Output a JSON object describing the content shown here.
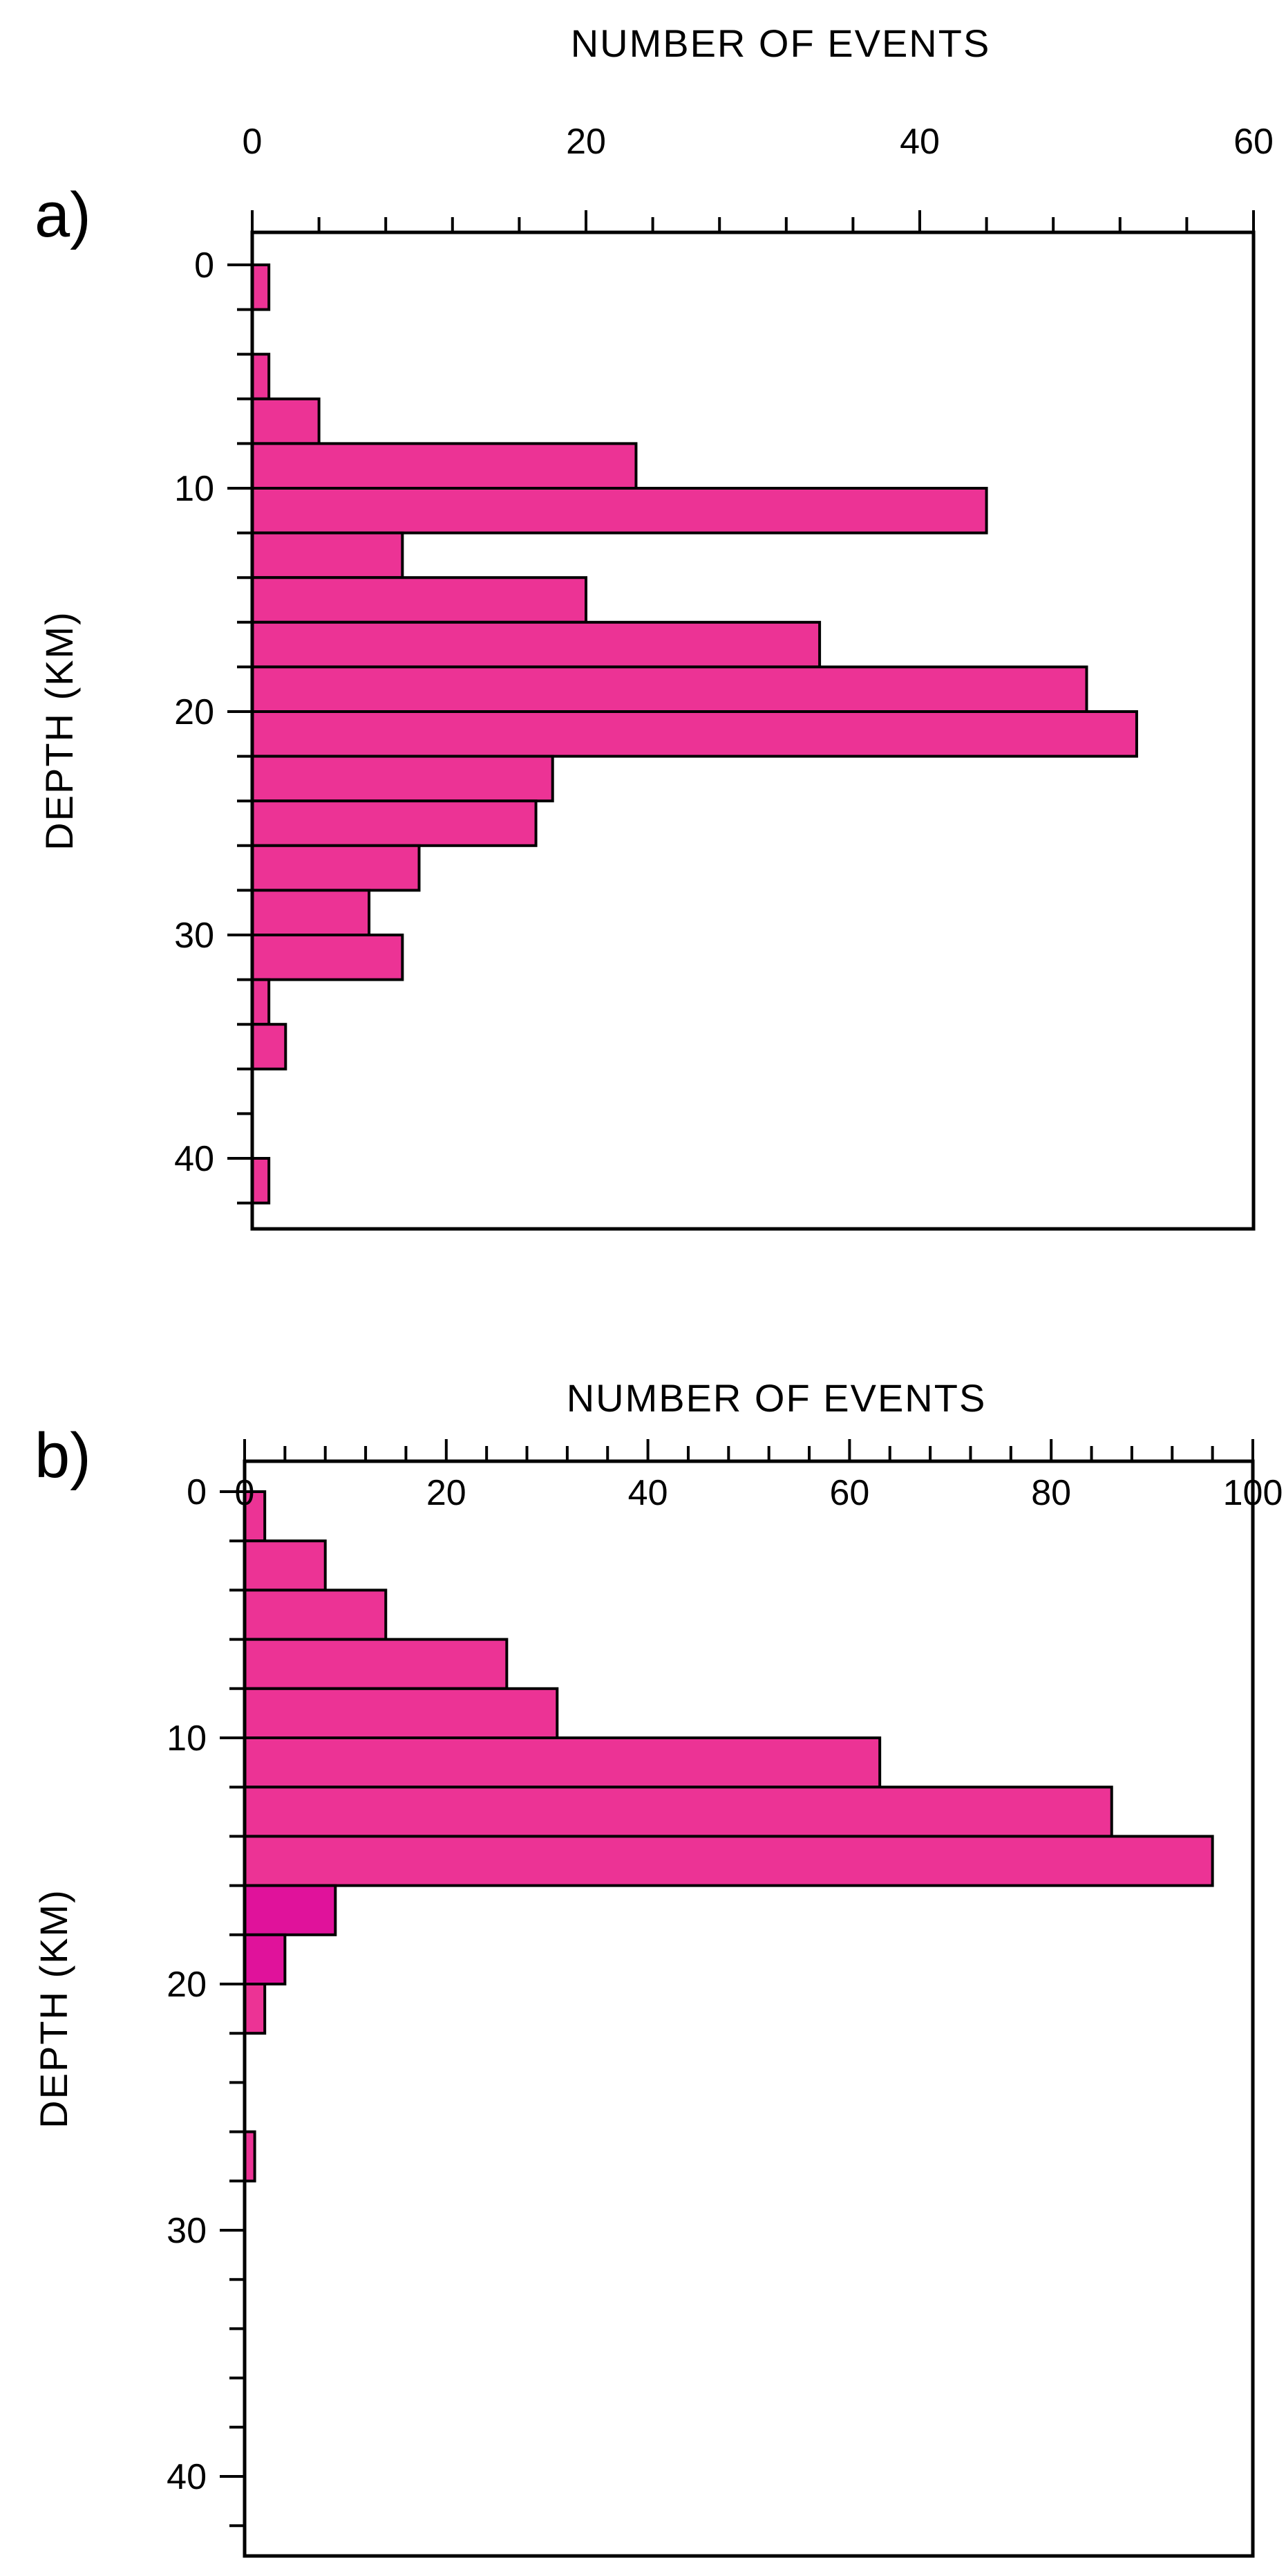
{
  "colors": {
    "bar_fill": "#ec3395",
    "bar_fill_dark": "#e0129b",
    "stroke": "#000000",
    "background": "#ffffff"
  },
  "chart_data": [
    {
      "type": "bar",
      "orientation": "horizontal",
      "panel_label": "a)",
      "xlabel": "NUMBER OF EVENTS",
      "ylabel": "DEPTH (KM)",
      "xlim": [
        0,
        60
      ],
      "ylim": [
        0,
        43
      ],
      "x_ticks": [
        0,
        20,
        40,
        60
      ],
      "y_ticks": [
        0,
        10,
        20,
        30,
        40
      ],
      "bin_width": 2,
      "bin_starts": [
        0,
        4,
        6,
        8,
        10,
        12,
        14,
        16,
        18,
        20,
        22,
        24,
        26,
        28,
        30,
        32,
        34,
        40
      ],
      "values": [
        1,
        1,
        4,
        23,
        44,
        9,
        20,
        34,
        50,
        53,
        18,
        17,
        10,
        7,
        9,
        1,
        2,
        1
      ]
    },
    {
      "type": "bar",
      "orientation": "horizontal",
      "panel_label": "b)",
      "xlabel": "NUMBER OF EVENTS",
      "ylabel": "DEPTH (KM)",
      "xlim": [
        0,
        100
      ],
      "ylim": [
        0,
        43
      ],
      "x_ticks": [
        0,
        20,
        40,
        60,
        80,
        100
      ],
      "y_ticks": [
        0,
        10,
        20,
        30,
        40
      ],
      "bin_width": 2,
      "bin_starts": [
        0,
        2,
        4,
        6,
        8,
        10,
        12,
        14,
        16,
        18,
        20,
        26
      ],
      "values": [
        2,
        8,
        14,
        26,
        31,
        63,
        86,
        96,
        9,
        4,
        2,
        1
      ]
    }
  ]
}
